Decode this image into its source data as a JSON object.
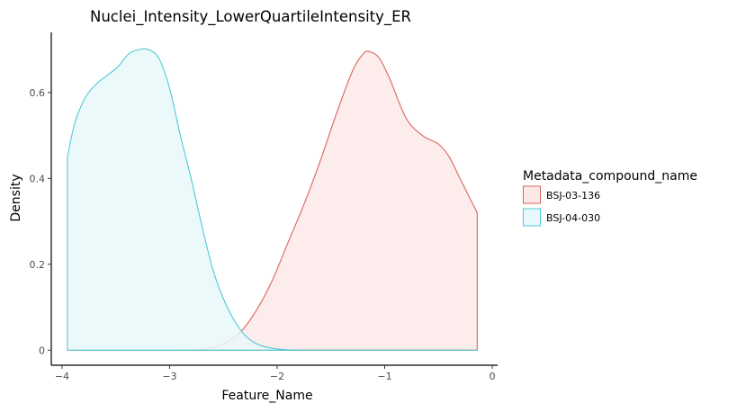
{
  "chart_data": {
    "type": "area",
    "title": "Nuclei_Intensity_LowerQuartileIntensity_ER",
    "xlabel": "Feature_Name",
    "ylabel": "Density",
    "xlim": [
      -4.1,
      0.05
    ],
    "ylim": [
      -0.035,
      0.74
    ],
    "x_ticks": [
      -4,
      -3,
      -2,
      -1,
      0
    ],
    "x_tick_labels": [
      "−4",
      "−3",
      "−2",
      "−1",
      "0"
    ],
    "y_ticks": [
      0,
      0.2,
      0.4,
      0.6
    ],
    "y_tick_labels": [
      "0",
      "0.2",
      "0.4",
      "0.6"
    ],
    "grid": false,
    "legend": {
      "title": "Metadata_compound_name",
      "placement": "right"
    },
    "series": [
      {
        "name": "BSJ-03-136",
        "color": "#d9655f",
        "fill": "#fbe9e8",
        "x": [
          -3.95,
          -3.0,
          -2.7,
          -2.5,
          -2.35,
          -2.2,
          -2.05,
          -1.9,
          -1.75,
          -1.6,
          -1.45,
          -1.3,
          -1.2,
          -1.14,
          -1.05,
          -0.95,
          -0.8,
          -0.65,
          -0.5,
          -0.4,
          -0.3,
          -0.2,
          -0.14
        ],
        "y": [
          0.0,
          0.0,
          0.002,
          0.015,
          0.04,
          0.09,
          0.16,
          0.25,
          0.34,
          0.44,
          0.55,
          0.65,
          0.69,
          0.695,
          0.68,
          0.63,
          0.54,
          0.5,
          0.48,
          0.45,
          0.4,
          0.35,
          0.32
        ]
      },
      {
        "name": "BSJ-04-030",
        "color": "#4fc9d6",
        "fill": "#e9f8fa",
        "x": [
          -3.95,
          -3.88,
          -3.78,
          -3.68,
          -3.58,
          -3.48,
          -3.38,
          -3.28,
          -3.2,
          -3.1,
          -3.0,
          -2.9,
          -2.8,
          -2.7,
          -2.6,
          -2.5,
          -2.4,
          -2.3,
          -2.2,
          -2.1,
          -2.0,
          -1.9,
          -1.8,
          -1.6,
          -0.14
        ],
        "y": [
          0.45,
          0.53,
          0.59,
          0.62,
          0.64,
          0.66,
          0.69,
          0.7,
          0.7,
          0.68,
          0.61,
          0.5,
          0.4,
          0.29,
          0.19,
          0.12,
          0.07,
          0.035,
          0.016,
          0.007,
          0.003,
          0.001,
          0.0,
          0.0,
          0.0
        ]
      }
    ]
  }
}
